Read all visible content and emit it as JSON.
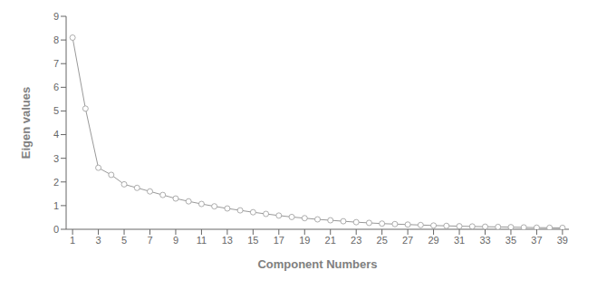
{
  "chart_data": {
    "type": "line",
    "xlabel": "Component Numbers",
    "ylabel": "Eigen values",
    "x": [
      1,
      2,
      3,
      4,
      5,
      6,
      7,
      8,
      9,
      10,
      11,
      12,
      13,
      14,
      15,
      16,
      17,
      18,
      19,
      20,
      21,
      22,
      23,
      24,
      25,
      26,
      27,
      28,
      29,
      30,
      31,
      32,
      33,
      34,
      35,
      36,
      37,
      38,
      39
    ],
    "values": [
      8.1,
      5.1,
      2.6,
      2.3,
      1.9,
      1.75,
      1.6,
      1.45,
      1.3,
      1.18,
      1.07,
      0.97,
      0.88,
      0.8,
      0.72,
      0.65,
      0.58,
      0.52,
      0.47,
      0.42,
      0.38,
      0.34,
      0.3,
      0.27,
      0.24,
      0.22,
      0.2,
      0.18,
      0.16,
      0.145,
      0.13,
      0.12,
      0.11,
      0.1,
      0.09,
      0.08,
      0.07,
      0.065,
      0.06
    ],
    "xlim": [
      0.5,
      39.5
    ],
    "ylim": [
      0,
      9
    ],
    "xticks": [
      1,
      3,
      5,
      7,
      9,
      11,
      13,
      15,
      17,
      19,
      21,
      23,
      25,
      27,
      29,
      31,
      33,
      35,
      37,
      39
    ],
    "yticks": [
      0,
      1,
      2,
      3,
      4,
      5,
      6,
      7,
      8,
      9
    ],
    "color": "#999999",
    "marker": "o",
    "grid": false
  }
}
